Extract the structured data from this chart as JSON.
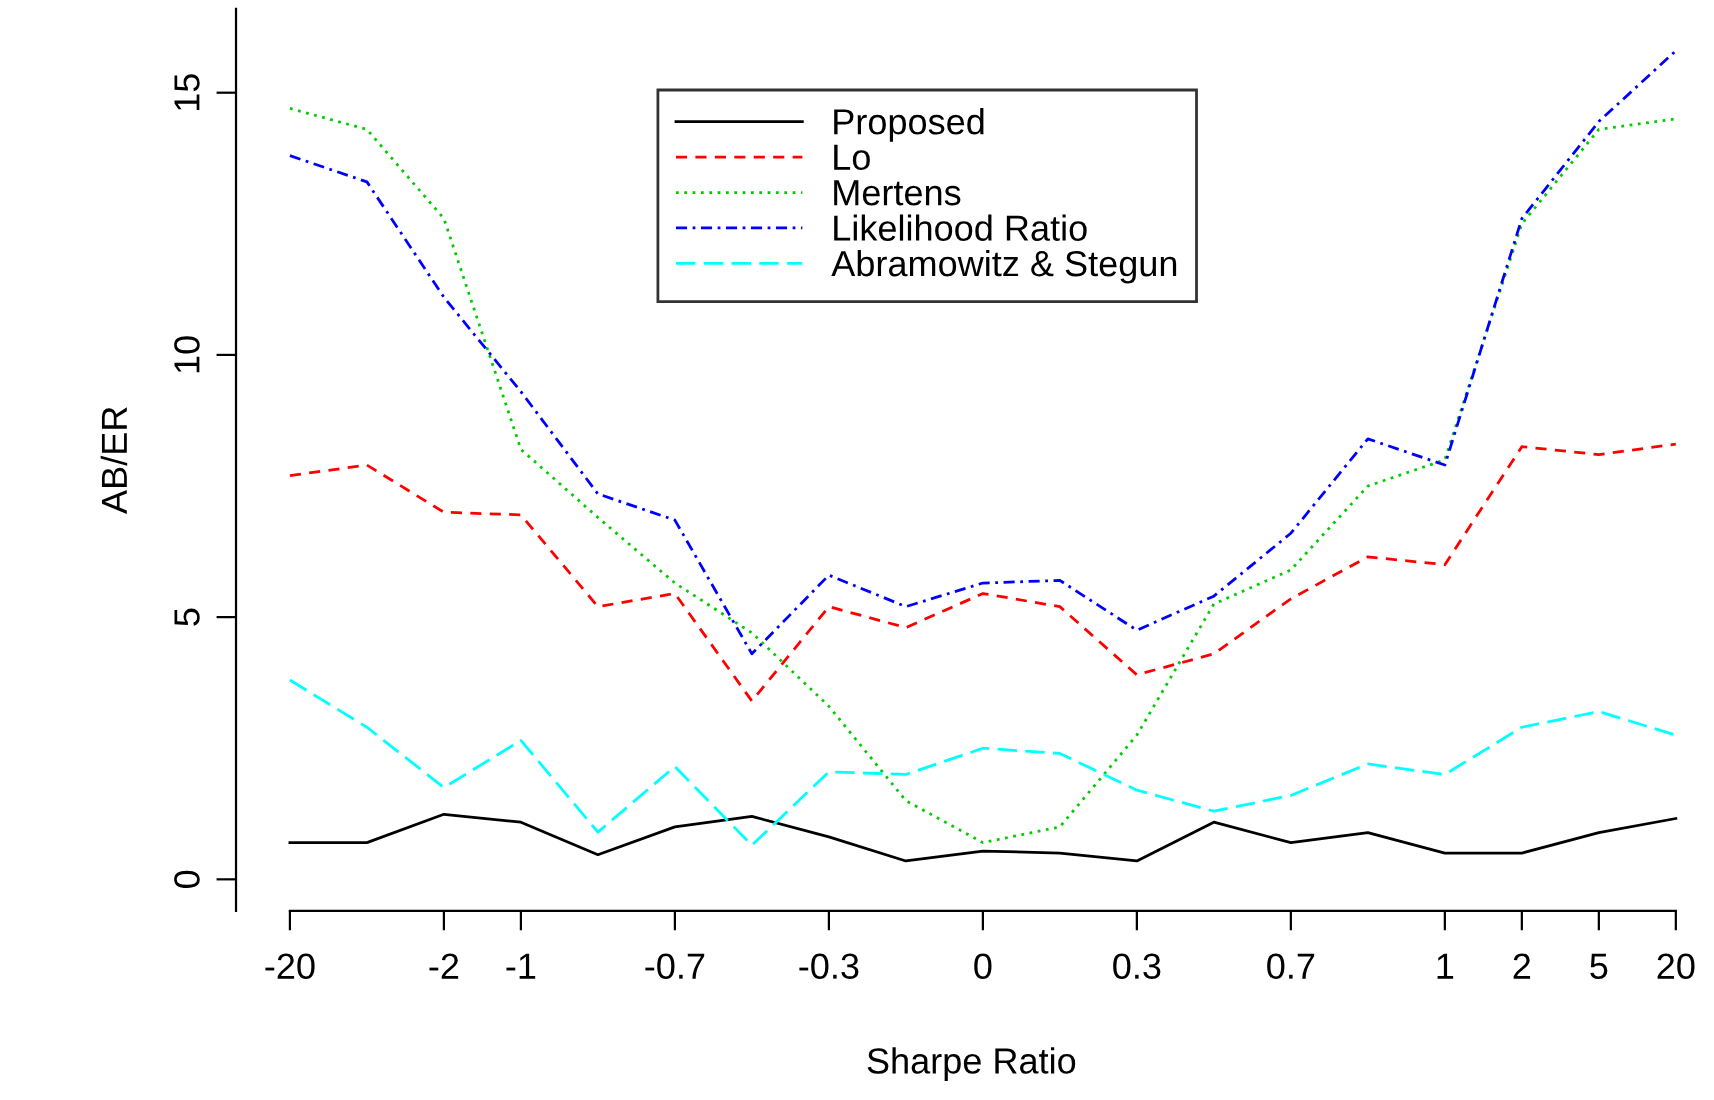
{
  "chart_data": {
    "type": "line",
    "xlabel": "Sharpe Ratio",
    "ylabel": "AB/ER",
    "categories": [
      "-20",
      null,
      "-2",
      "-1",
      null,
      "-0.7",
      null,
      "-0.3",
      null,
      "0",
      null,
      "0.3",
      null,
      "0.7",
      null,
      "1",
      "2",
      "5",
      "20"
    ],
    "ylim": [
      -0.6,
      16.6
    ],
    "yticks": [
      0,
      5,
      10,
      15
    ],
    "grid": false,
    "legend": "top",
    "marker": "none",
    "series": [
      {
        "name": "Proposed",
        "color": "#000000",
        "line_style": "solid",
        "values": [
          0.7,
          0.7,
          1.24,
          1.09,
          0.47,
          1.0,
          1.2,
          0.81,
          0.35,
          0.54,
          0.5,
          0.35,
          1.09,
          0.7,
          0.89,
          0.5,
          0.5,
          0.89,
          1.16
        ]
      },
      {
        "name": "Lo",
        "color": "#ff0000",
        "line_style": "dashed",
        "values": [
          7.7,
          7.9,
          7.0,
          6.95,
          5.2,
          5.45,
          3.4,
          5.2,
          4.8,
          5.45,
          5.2,
          3.9,
          4.3,
          5.35,
          6.15,
          6.0,
          8.25,
          8.1,
          8.3
        ]
      },
      {
        "name": "Mertens",
        "color": "#00cd00",
        "line_style": "dotted",
        "values": [
          14.7,
          14.3,
          12.6,
          8.2,
          6.9,
          5.65,
          4.7,
          3.3,
          1.5,
          0.7,
          1.0,
          2.75,
          5.25,
          5.9,
          7.5,
          8.0,
          12.5,
          14.3,
          14.5
        ]
      },
      {
        "name": "Likelihood Ratio",
        "color": "#0000ff",
        "line_style": "dashdot",
        "values": [
          13.8,
          13.3,
          11.1,
          9.3,
          7.35,
          6.85,
          4.3,
          5.8,
          5.2,
          5.65,
          5.7,
          4.75,
          5.4,
          6.6,
          8.4,
          7.9,
          12.6,
          14.45,
          15.8
        ]
      },
      {
        "name": "Abramowitz & Stegun",
        "color": "#00ffff",
        "line_style": "longdash",
        "values": [
          3.8,
          2.9,
          1.75,
          2.65,
          0.9,
          2.15,
          0.65,
          2.05,
          2.0,
          2.5,
          2.4,
          1.7,
          1.3,
          1.6,
          2.2,
          2.0,
          2.9,
          3.2,
          2.75
        ]
      }
    ]
  }
}
